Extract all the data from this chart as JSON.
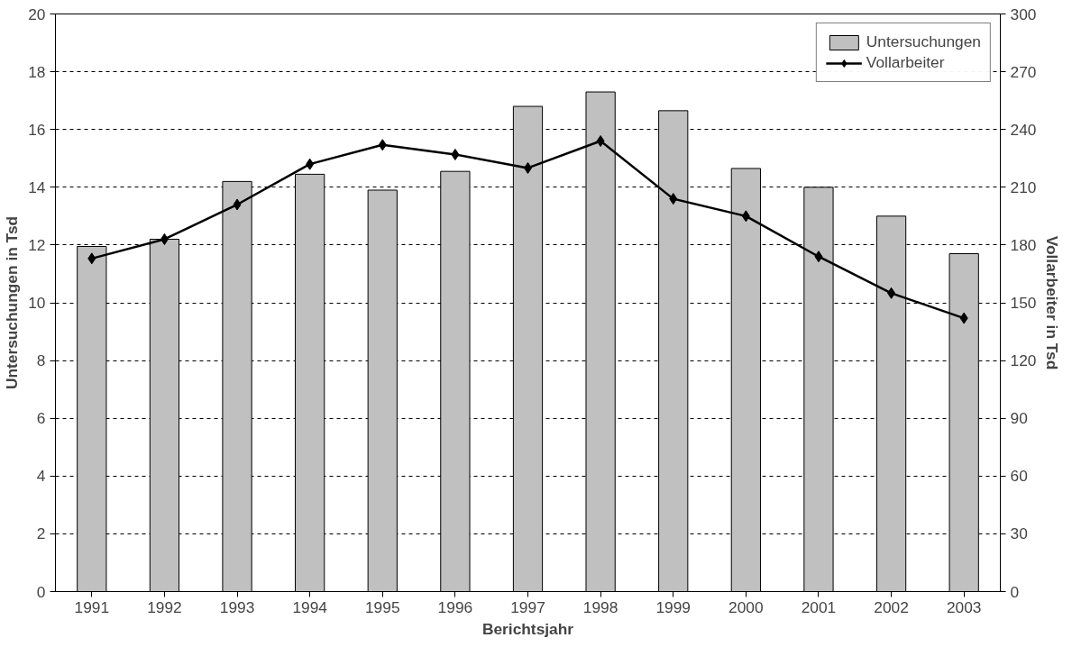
{
  "chart_data": {
    "type": "bar",
    "xlabel": "Berichtsjahr",
    "ylabel": "Untersuchungen in Tsd",
    "y2label": "Vollarbeiter in Tsd",
    "categories": [
      "1991",
      "1992",
      "1993",
      "1994",
      "1995",
      "1996",
      "1997",
      "1998",
      "1999",
      "2000",
      "2001",
      "2002",
      "2003"
    ],
    "series": [
      {
        "name": "Untersuchungen",
        "color": "#c0c0c0",
        "values": [
          11.95,
          12.2,
          14.2,
          14.45,
          13.9,
          14.55,
          16.8,
          17.3,
          16.65,
          14.65,
          14.0,
          13.0,
          11.7
        ]
      },
      {
        "name": "Vollarbeiter",
        "type": "line",
        "axis": "y2",
        "color": "#000000",
        "marker": "diamond",
        "values": [
          173,
          183,
          201,
          222,
          232,
          227,
          220,
          234,
          204,
          195,
          174,
          155,
          142
        ]
      }
    ],
    "ylim": [
      0,
      20
    ],
    "yticks": [
      0,
      2,
      4,
      6,
      8,
      10,
      12,
      14,
      16,
      18,
      20
    ],
    "y2lim": [
      0,
      300
    ],
    "y2ticks": [
      0,
      30,
      60,
      90,
      120,
      150,
      180,
      210,
      240,
      270,
      300
    ],
    "grid": "y",
    "legend": "top right"
  }
}
